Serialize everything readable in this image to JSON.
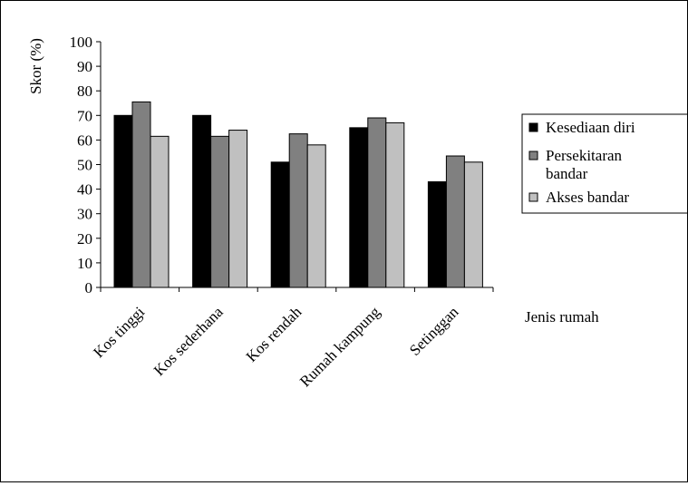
{
  "chart_data": {
    "type": "bar",
    "title": "",
    "ylabel": "Skor (%)",
    "xlabel": "Jenis rumah",
    "ylim": [
      0,
      100
    ],
    "yticks": [
      0,
      10,
      20,
      30,
      40,
      50,
      60,
      70,
      80,
      90,
      100
    ],
    "categories": [
      "Kos tinggi",
      "Kos sederhana",
      "Kos rendah",
      "Rumah kampung",
      "Setinggan"
    ],
    "series": [
      {
        "name": "Kesediaan diri",
        "color": "#000000",
        "values": [
          70,
          70,
          51,
          65,
          43
        ]
      },
      {
        "name": "Persekitaran bandar",
        "color": "#808080",
        "values": [
          75.5,
          61.5,
          62.5,
          69,
          53.5
        ]
      },
      {
        "name": "Akses bandar",
        "color": "#c0c0c0",
        "values": [
          61.5,
          64,
          58,
          67,
          51
        ]
      }
    ],
    "legend": {
      "position": "right",
      "entries": [
        {
          "lines": [
            "Kesediaan diri"
          ]
        },
        {
          "lines": [
            "Persekitaran",
            "bandar"
          ]
        },
        {
          "lines": [
            "Akses bandar"
          ]
        }
      ]
    },
    "grid": false
  }
}
